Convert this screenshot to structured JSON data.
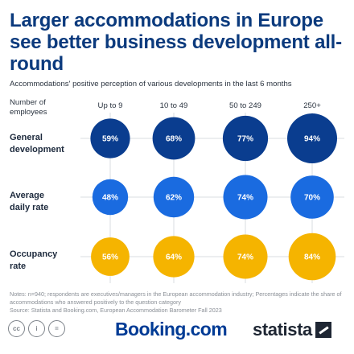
{
  "title": "Larger accommodations in Europe see better business development all-round",
  "subtitle": "Accommodations' positive perception of various developments in the last 6 months",
  "header_label": "Number of employees",
  "chart_data": {
    "type": "bubble-grid",
    "columns": [
      "Up to 9",
      "10 to 49",
      "50 to 249",
      "250+"
    ],
    "rows": [
      {
        "name": "General development",
        "values": [
          59,
          68,
          77,
          94
        ],
        "labels": [
          "59%",
          "68%",
          "77%",
          "94%"
        ],
        "color": "#0a3d8f"
      },
      {
        "name": "Average daily rate",
        "values": [
          48,
          62,
          74,
          70
        ],
        "labels": [
          "48%",
          "62%",
          "74%",
          "70%"
        ],
        "color": "#1a6be0"
      },
      {
        "name": "Occupancy rate",
        "values": [
          56,
          64,
          74,
          84
        ],
        "labels": [
          "56%",
          "64%",
          "74%",
          "84%"
        ],
        "color": "#f5b400"
      }
    ],
    "gridlines": true
  },
  "notes": "Notes: n=940; respondents are executives/managers in the European accommodation industry; Percentages indicate the share of accommodations who answered positively to the question category",
  "source": "Source: Statista and Booking.com, European Accommodation Barometer Fall 2023",
  "footer": {
    "cc_icons": [
      "cc",
      "i",
      "="
    ],
    "booking_logo": "Booking.com",
    "statista_logo": "statista"
  }
}
